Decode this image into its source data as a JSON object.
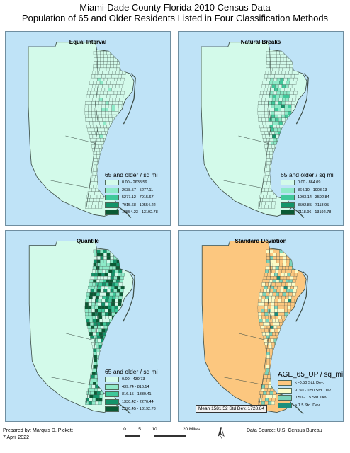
{
  "header": {
    "title_line1": "Miami-Dade County Florida 2010 Census Data",
    "title_line2": "Population of 65 and Older Residents Listed in Four Classification Methods"
  },
  "colors": {
    "ocean": "#bfe3f7",
    "boundary": "#3d4e47"
  },
  "panels": [
    {
      "title": "Equal Interval",
      "legend_title": "65 and older / sq mi",
      "classes": [
        {
          "label": "0.00 - 2638.56",
          "color": "#d3faea"
        },
        {
          "label": "2638.57 - 5277.11",
          "color": "#8eeac8"
        },
        {
          "label": "5277.12 - 7915.67",
          "color": "#3fc89a"
        },
        {
          "label": "7915.68 - 10554.22",
          "color": "#14946a"
        },
        {
          "label": "10554.23 - 13192.78",
          "color": "#0a5a34"
        }
      ]
    },
    {
      "title": "Natural Breaks",
      "legend_title": "65 and older / sq mi",
      "classes": [
        {
          "label": "0.00 - 864.09",
          "color": "#d3faea"
        },
        {
          "label": "864.10 - 1903.13",
          "color": "#8eeac8"
        },
        {
          "label": "1903.14 - 3592.84",
          "color": "#3fc89a"
        },
        {
          "label": "3592.85 - 7118.95",
          "color": "#14946a"
        },
        {
          "label": "7118.96 - 13192.78",
          "color": "#0a5a34"
        }
      ]
    },
    {
      "title": "Quantile",
      "legend_title": "65 and older / sq mi",
      "classes": [
        {
          "label": "0.00 - 439.73",
          "color": "#d3faea"
        },
        {
          "label": "439.74 - 816.14",
          "color": "#8eeac8"
        },
        {
          "label": "816.15 - 1330.41",
          "color": "#3fc89a"
        },
        {
          "label": "1330.42 - 2270.44",
          "color": "#14946a"
        },
        {
          "label": "2270.45 - 13192.78",
          "color": "#0a5a34"
        }
      ]
    },
    {
      "title": "Standard Deviation",
      "legend_title": "AGE_65_UP / sq_mi",
      "classes": [
        {
          "label": "< -0.50 Std. Dev.",
          "color": "#fcc77f"
        },
        {
          "label": "-0.50 - 0.50 Std. Dev.",
          "color": "#fbfbc6"
        },
        {
          "label": "0.50 - 1.5 Std. Dev.",
          "color": "#7bd3ba"
        },
        {
          "label": "> 1.5 Std. Dev.",
          "color": "#1b8f7d"
        }
      ],
      "note": "Mean 1581.52 Std Dev. 1728.84"
    }
  ],
  "footer": {
    "prepared_by": "Prepared by: Marquis D. Pickett",
    "date": "7 April 2022",
    "data_source": "Data Source: U.S. Census Bureau",
    "scale_labels": [
      "0",
      "5",
      "10",
      "20 Miles"
    ],
    "north_label": "N"
  }
}
